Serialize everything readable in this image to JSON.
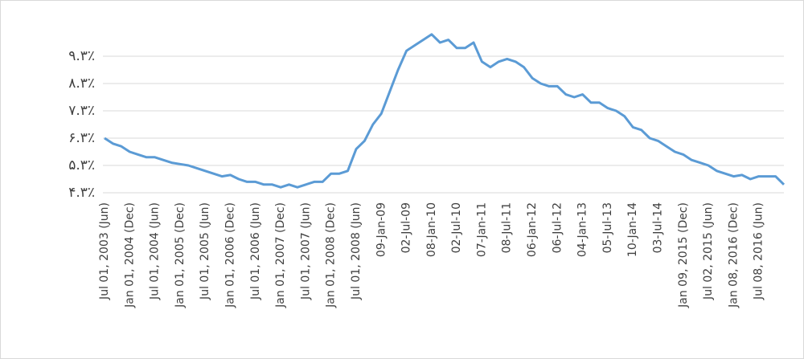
{
  "chart_data": {
    "type": "line",
    "categories": [
      "Jul 01, 2003 (Jun)",
      null,
      null,
      "Jan 01, 2004 (Dec)",
      null,
      null,
      "Jul 01, 2004 (Jun)",
      null,
      null,
      "Jan 01, 2005 (Dec)",
      null,
      null,
      "Jul 01, 2005 (Jun)",
      null,
      null,
      "Jan 01, 2006 (Dec)",
      null,
      null,
      "Jul 01, 2006 (Jun)",
      null,
      null,
      "Jan 01, 2007 (Dec)",
      null,
      null,
      "Jul 01, 2007 (Jun)",
      null,
      null,
      "Jan 01, 2008 (Dec)",
      null,
      null,
      "Jul 01, 2008 (Jun)",
      null,
      null,
      "09-Jan-09",
      null,
      null,
      "02-Jul-09",
      null,
      null,
      "08-Jan-10",
      null,
      null,
      "02-Jul-10",
      null,
      null,
      "07-Jan-11",
      null,
      null,
      "08-Jul-11",
      null,
      null,
      "06-Jan-12",
      null,
      null,
      "06-Jul-12",
      null,
      null,
      "04-Jan-13",
      null,
      null,
      "05-Jul-13",
      null,
      null,
      "10-Jan-14",
      null,
      null,
      "03-Jul-14",
      null,
      null,
      "Jan 09, 2015 (Dec)",
      null,
      null,
      "Jul 02, 2015 (Jun)",
      null,
      null,
      "Jan 08, 2016 (Dec)",
      null,
      null,
      "Jul 08, 2016 (Jun)",
      null,
      null,
      null
    ],
    "series": [
      {
        "name": null,
        "color": "#5b9bd5",
        "values": [
          6.3,
          6.1,
          6.0,
          5.8,
          5.7,
          5.6,
          5.6,
          5.5,
          5.4,
          5.35,
          5.3,
          5.2,
          5.1,
          5.0,
          4.9,
          4.95,
          4.8,
          4.7,
          4.7,
          4.6,
          4.6,
          4.5,
          4.6,
          4.5,
          4.6,
          4.7,
          4.7,
          5.0,
          5.0,
          5.1,
          5.9,
          6.2,
          6.8,
          7.2,
          8.0,
          8.8,
          9.5,
          9.7,
          9.9,
          10.1,
          9.8,
          9.9,
          9.6,
          9.6,
          9.8,
          9.1,
          8.9,
          9.1,
          9.2,
          9.1,
          8.9,
          8.5,
          8.3,
          8.2,
          8.2,
          7.9,
          7.8,
          7.9,
          7.6,
          7.6,
          7.4,
          7.3,
          7.1,
          6.7,
          6.6,
          6.3,
          6.2,
          6.0,
          5.8,
          5.7,
          5.5,
          5.4,
          5.3,
          5.1,
          5.0,
          4.9,
          4.95,
          4.8,
          4.9,
          4.9,
          4.9,
          4.6
        ]
      }
    ],
    "ylim": [
      4.3,
      10.3
    ],
    "yticks": [
      {
        "value": 4.3,
        "label": "۴.۳٪"
      },
      {
        "value": 5.3,
        "label": "۵.۳٪"
      },
      {
        "value": 6.3,
        "label": "۶.۳٪"
      },
      {
        "value": 7.3,
        "label": "۷.۳٪"
      },
      {
        "value": 8.3,
        "label": "۸.۳٪"
      },
      {
        "value": 9.3,
        "label": "۹.۳٪"
      }
    ],
    "grid": true
  }
}
